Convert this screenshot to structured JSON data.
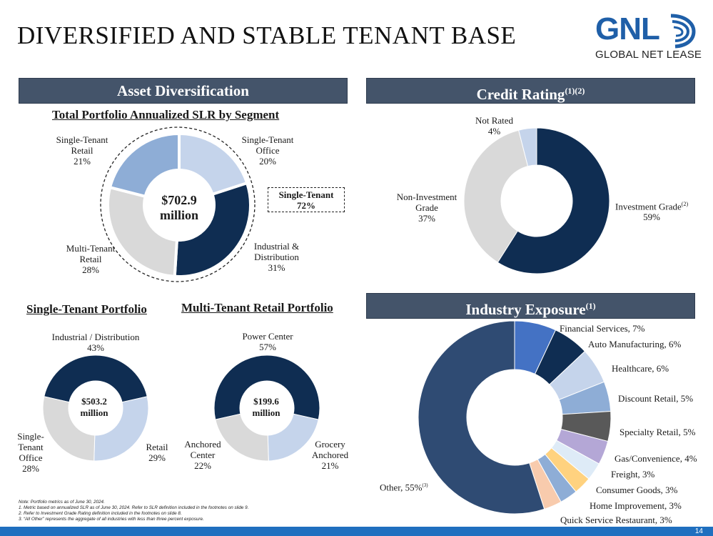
{
  "page": {
    "title": "DIVERSIFIED AND STABLE TENANT BASE",
    "logo_main": "GNL",
    "logo_sub": "GLOBAL NET LEASE",
    "page_number": "14",
    "accent_dark": "#0f2d52",
    "accent_mid": "#3e5c8a"
  },
  "sections": {
    "asset": "Asset Diversification",
    "credit": "Credit Rating",
    "credit_sup": "(1)(2)",
    "industry": "Industry Exposure",
    "industry_sup": "(1)"
  },
  "notes": [
    "Note: Portfolio metrics as of June 30, 2024.",
    "1.     Metric based on annualized SLR as of June 30, 2024. Refer to SLR definition included in the footnotes on slide 9.",
    "2.     Refer to Investment Grade Rating definition included in the footnotes on slide 8.",
    "3.     “All Other” represents the aggregate of all industries with less than three percent exposure."
  ],
  "chart_data": [
    {
      "id": "segment",
      "type": "pie",
      "title": "Total Portfolio Annualized SLR by Segment",
      "center_line1": "$702.9",
      "center_line2": "million",
      "callout_line1": "Single-Tenant",
      "callout_line2": "72%",
      "slices": [
        {
          "label": "Single-Tenant Office",
          "value": 20,
          "color": "#c5d4eb"
        },
        {
          "label": "Industrial & Distribution",
          "value": 31,
          "color": "#0f2d52"
        },
        {
          "label": "Multi-Tenant Retail",
          "value": 28,
          "color": "#d9d9d9"
        },
        {
          "label": "Single-Tenant Retail",
          "value": 21,
          "color": "#8eadd6"
        }
      ],
      "labels": [
        {
          "l1": "Single-Tenant",
          "l2": "Office",
          "l3": "20%"
        },
        {
          "l1": "Industrial &",
          "l2": "Distribution",
          "l3": "31%"
        },
        {
          "l1": "Multi-Tenant",
          "l2": "Retail",
          "l3": "28%"
        },
        {
          "l1": "Single-Tenant",
          "l2": "Retail",
          "l3": "21%"
        }
      ]
    },
    {
      "id": "credit",
      "type": "pie",
      "title": "Credit Rating",
      "slices": [
        {
          "label": "Investment Grade",
          "value": 59,
          "color": "#0f2d52"
        },
        {
          "label": "Non-Investment Grade",
          "value": 37,
          "color": "#d9d9d9"
        },
        {
          "label": "Not Rated",
          "value": 4,
          "color": "#c5d4eb"
        }
      ],
      "labels": [
        {
          "l1": "Investment Grade",
          "sup": "(2)",
          "l2": "59%"
        },
        {
          "l1": "Non-Investment",
          "l2": "Grade",
          "l3": "37%"
        },
        {
          "l1": "Not Rated",
          "l2": "4%"
        }
      ]
    },
    {
      "id": "single_tenant",
      "type": "pie",
      "title": "Single-Tenant Portfolio",
      "center_line1": "$503.2",
      "center_line2": "million",
      "slices": [
        {
          "label": "Industrial / Distribution",
          "value": 43,
          "color": "#0f2d52"
        },
        {
          "label": "Retail",
          "value": 29,
          "color": "#c5d4eb"
        },
        {
          "label": "Single-Tenant Office",
          "value": 28,
          "color": "#d9d9d9"
        }
      ],
      "labels": [
        {
          "l1": "Industrial / Distribution",
          "l2": "43%"
        },
        {
          "l1": "Retail",
          "l2": "29%"
        },
        {
          "l1": "Single-",
          "l2": "Tenant",
          "l3": "Office",
          "l4": "28%"
        }
      ]
    },
    {
      "id": "multi_tenant",
      "type": "pie",
      "title": "Multi-Tenant Retail Portfolio",
      "center_line1": "$199.6",
      "center_line2": "million",
      "slices": [
        {
          "label": "Power Center",
          "value": 57,
          "color": "#0f2d52"
        },
        {
          "label": "Grocery Anchored",
          "value": 21,
          "color": "#c5d4eb"
        },
        {
          "label": "Anchored Center",
          "value": 22,
          "color": "#d9d9d9"
        }
      ],
      "labels": [
        {
          "l1": "Power Center",
          "l2": "57%"
        },
        {
          "l1": "Grocery",
          "l2": "Anchored",
          "l3": "21%"
        },
        {
          "l1": "Anchored",
          "l2": "Center",
          "l3": "22%"
        }
      ]
    },
    {
      "id": "industry",
      "type": "pie",
      "title": "Industry Exposure",
      "slices": [
        {
          "label": "Financial Services, 7%",
          "value": 7,
          "color": "#4472c4"
        },
        {
          "label": "Auto Manufacturing, 6%",
          "value": 6,
          "color": "#0f2d52"
        },
        {
          "label": "Healthcare, 6%",
          "value": 6,
          "color": "#c5d4eb"
        },
        {
          "label": "Discount Retail, 5%",
          "value": 5,
          "color": "#8eadd6"
        },
        {
          "label": "Specialty Retail, 5%",
          "value": 5,
          "color": "#595959"
        },
        {
          "label": "Gas/Convenience, 4%",
          "value": 4,
          "color": "#b4a7d6"
        },
        {
          "label": "Freight, 3%",
          "value": 3,
          "color": "#deebf7"
        },
        {
          "label": "Consumer Goods, 3%",
          "value": 3,
          "color": "#ffd27f"
        },
        {
          "label": "Home Improvement, 3%",
          "value": 3,
          "color": "#8eadd6"
        },
        {
          "label": "Quick Service Restaurant, 3%",
          "value": 3,
          "color": "#f8cbad"
        },
        {
          "label": "Other, 55%",
          "value": 55,
          "color": "#2f4b73"
        }
      ],
      "other_sup": "(3)"
    }
  ]
}
